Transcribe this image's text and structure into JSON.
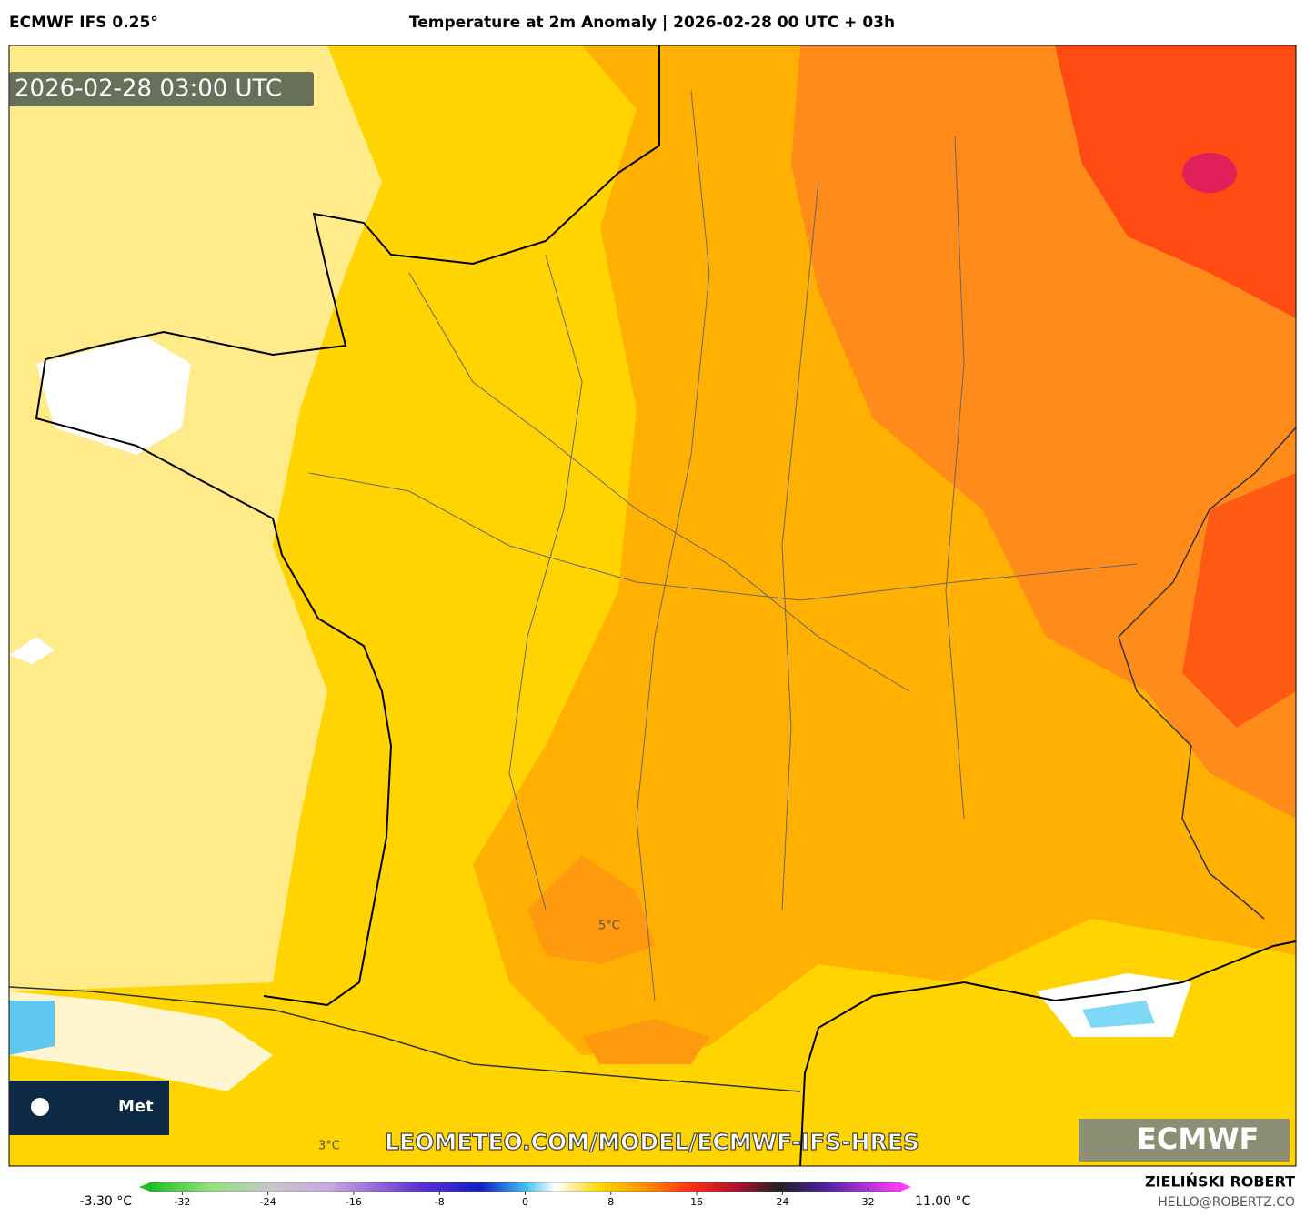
{
  "header": {
    "model": "ECMWF IFS 0.25°",
    "title": "Temperature at 2m Anomaly | 2026-02-28 00 UTC + 03h"
  },
  "map": {
    "timestamp": "2026-02-28 03:00 UTC",
    "watermark": "LEOMETEO.COM/MODEL/ECMWF-IFS-HRES",
    "logo_left": "Met",
    "logo_right": "ECMWF",
    "contour_labels": [
      "5°C",
      "3°C"
    ]
  },
  "colorbar": {
    "min_label": "-3.30 °C",
    "max_label": "11.00 °C",
    "range": [
      -35,
      35
    ],
    "ticks": [
      -32,
      -24,
      -16,
      -8,
      0,
      8,
      16,
      24,
      32
    ]
  },
  "footer": {
    "author": "ZIELIŃSKI ROBERT",
    "contact": "HELLO@ROBERTZ.CO"
  }
}
